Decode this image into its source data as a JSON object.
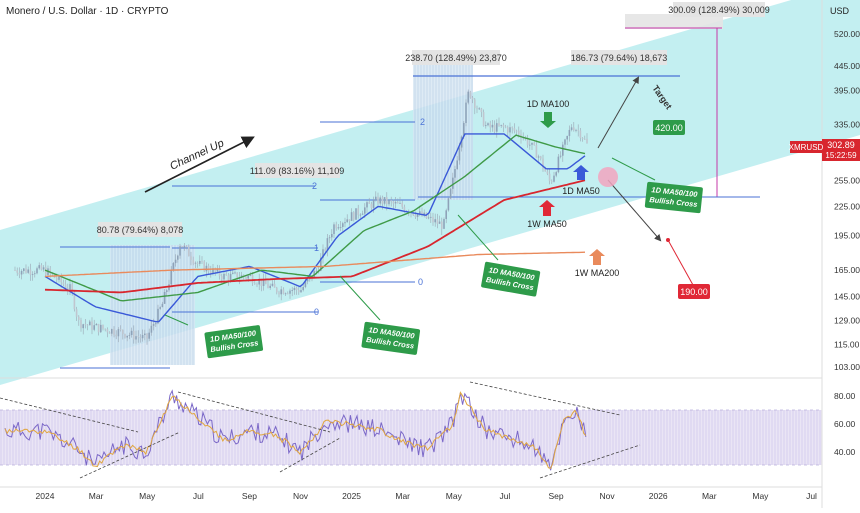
{
  "header": {
    "title": "Monero / U.S. Dollar · 1D · CRYPTO",
    "currency": "USD"
  },
  "colors": {
    "channel": "#b8ecef",
    "ma50_1d": "#3a59d8",
    "ma100_1d": "#3f9a47",
    "ma50_1w": "#d8262e",
    "ma200_1w": "#e98a5c",
    "rsi": "#7b68c8",
    "rsi_ma": "#e0a640",
    "label_green": "#2e9b4a",
    "label_red": "#e02836",
    "price_tag": "#d8262e",
    "target_line": "#4a72d6",
    "grey_box": "#e4e4e4"
  },
  "chart_data": [
    {
      "type": "candlestick",
      "title": "",
      "x_ticks": [
        "2024",
        "Mar",
        "May",
        "Jul",
        "Sep",
        "Nov",
        "2025",
        "Mar",
        "May",
        "Jul",
        "Sep",
        "Nov",
        "2026",
        "Mar",
        "May",
        "Jul"
      ],
      "y_ticks": [
        520.0,
        445.0,
        395.0,
        335.0,
        295.0,
        255.0,
        225.0,
        195.0,
        165.0,
        145.0,
        129.0,
        115.0,
        103.0
      ],
      "y_scale": "log",
      "ylim": [
        96,
        600
      ],
      "last_price": "302.89",
      "countdown": "15:22:59",
      "symbol": "XMRUSD",
      "series": [
        {
          "name": "Price",
          "x": [
            "2024-01-01",
            "2024-02-01",
            "2024-02-10",
            "2024-03-01",
            "2024-04-01",
            "2024-05-01",
            "2024-05-20",
            "2024-06-10",
            "2024-07-01",
            "2024-08-01",
            "2024-09-01",
            "2024-10-01",
            "2024-11-01",
            "2024-11-20",
            "2024-12-10",
            "2025-01-01",
            "2025-02-01",
            "2025-03-01",
            "2025-04-01",
            "2025-04-20",
            "2025-05-01",
            "2025-05-08",
            "2025-05-20",
            "2025-06-10",
            "2025-07-01",
            "2025-07-20",
            "2025-08-10",
            "2025-08-25",
            "2025-09-10",
            "2025-09-20",
            "2025-10-01",
            "2025-10-08"
          ],
          "values": [
            165,
            150,
            128,
            125,
            122,
            118,
            140,
            188,
            170,
            160,
            160,
            150,
            150,
            165,
            205,
            215,
            232,
            225,
            212,
            205,
            255,
            300,
            395,
            330,
            330,
            322,
            290,
            252,
            300,
            335,
            320,
            303
          ]
        },
        {
          "name": "1D MA50",
          "x": [
            "2024-01-01",
            "2024-03-01",
            "2024-05-15",
            "2024-07-01",
            "2024-09-01",
            "2024-11-01",
            "2024-12-15",
            "2025-02-01",
            "2025-04-01",
            "2025-05-15",
            "2025-07-01",
            "2025-08-20",
            "2025-09-15",
            "2025-10-08"
          ],
          "values": [
            160,
            138,
            128,
            160,
            168,
            152,
            195,
            225,
            215,
            320,
            320,
            270,
            270,
            290
          ]
        },
        {
          "name": "1D MA100",
          "x": [
            "2024-01-01",
            "2024-04-01",
            "2024-07-01",
            "2024-09-15",
            "2024-11-15",
            "2025-01-15",
            "2025-03-15",
            "2025-05-15",
            "2025-07-15",
            "2025-09-01",
            "2025-10-08"
          ],
          "values": [
            165,
            142,
            148,
            165,
            160,
            200,
            220,
            260,
            318,
            300,
            290
          ]
        },
        {
          "name": "1W MA50",
          "x": [
            "2024-01-01",
            "2024-04-01",
            "2024-07-01",
            "2024-10-01",
            "2025-01-01",
            "2025-04-01",
            "2025-07-01",
            "2025-10-08"
          ],
          "values": [
            150,
            148,
            155,
            158,
            160,
            185,
            232,
            256
          ]
        },
        {
          "name": "1W MA200",
          "x": [
            "2024-01-01",
            "2024-06-01",
            "2024-12-01",
            "2025-06-01",
            "2025-10-08"
          ],
          "values": [
            160,
            165,
            168,
            178,
            180
          ]
        }
      ]
    },
    {
      "type": "line",
      "title": "",
      "y_ticks": [
        80.0,
        60.0,
        40.0
      ],
      "ylim": [
        20,
        90
      ],
      "series": [
        {
          "name": "RSI",
          "x": [
            "2024-01-01",
            "2024-02-10",
            "2024-03-01",
            "2024-04-01",
            "2024-05-01",
            "2024-06-01",
            "2024-07-01",
            "2024-08-01",
            "2024-09-01",
            "2024-10-01",
            "2024-11-01",
            "2024-12-01",
            "2025-01-01",
            "2025-02-01",
            "2025-03-01",
            "2025-04-01",
            "2025-05-01",
            "2025-05-10",
            "2025-06-10",
            "2025-07-10",
            "2025-08-10",
            "2025-08-25",
            "2025-09-10",
            "2025-09-25",
            "2025-10-08"
          ],
          "values": [
            55,
            42,
            30,
            45,
            40,
            80,
            65,
            48,
            55,
            52,
            40,
            62,
            60,
            56,
            48,
            42,
            60,
            82,
            55,
            50,
            42,
            26,
            62,
            70,
            48
          ]
        }
      ]
    }
  ],
  "annotations": {
    "channel_label": "Channel Up",
    "stat_top": "300.09 (128.49%) 30,009",
    "stat_1": "238.70 (128.49%) 23,870",
    "stat_2": "186.73 (79.64%) 18,673",
    "stat_3": "111.09 (83.16%) 11,109",
    "stat_4": "80.78 (79.64%) 8,078",
    "target_label": "Target",
    "target_value": "420.00",
    "bear_value": "190.00",
    "label_1d_ma100": "1D MA100",
    "label_1d_ma50": "1D MA50",
    "label_1w_ma50": "1W MA50",
    "label_1w_ma200": "1W MA200",
    "cross_1_line1": "1D MA50/100",
    "cross_1_line2": "Bullish Cross",
    "cross_2_line1": "1D MA50/100",
    "cross_2_line2": "Bullish Cross",
    "cross_3_line1": "1D MA50/100",
    "cross_3_line2": "Bullish Cross",
    "cross_4_line1": "1D MA50/100",
    "cross_4_line2": "Bullish Cross",
    "fib_2": "2",
    "fib_1": "1",
    "fib_0": "0"
  }
}
